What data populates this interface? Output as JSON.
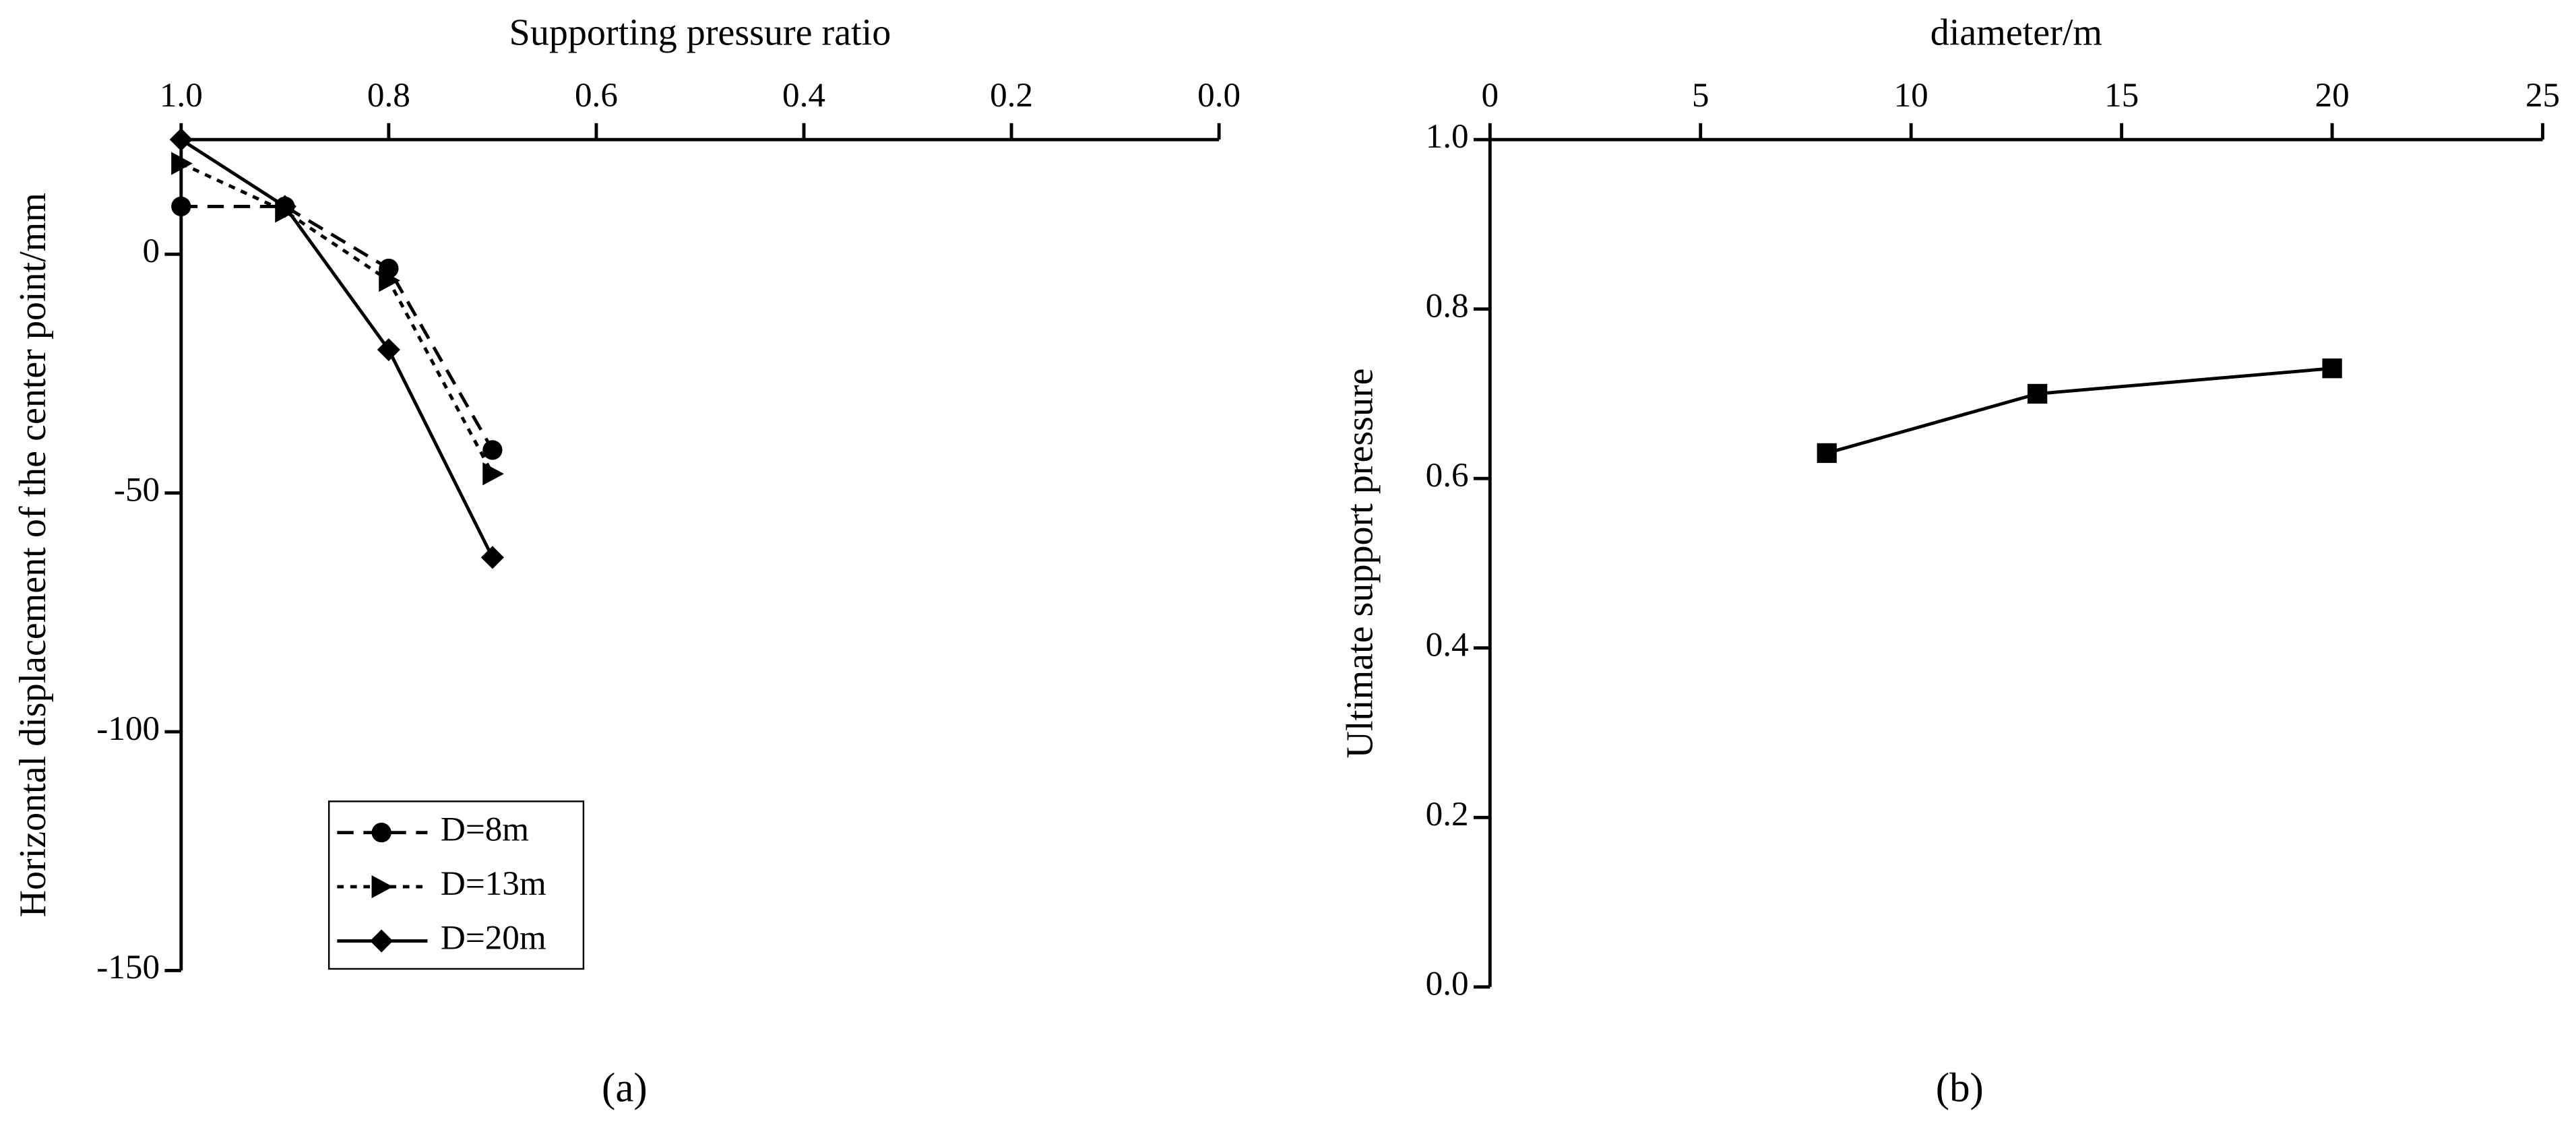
{
  "chart_data": [
    {
      "type": "line",
      "xlabel": "Supporting pressure ratio",
      "ylabel": "Horizontal displacement of the center point/mm",
      "caption": "(a)",
      "x": [
        1,
        0.9,
        0.8,
        0.7
      ],
      "xlim": [
        1,
        0
      ],
      "xticks": [
        {
          "value": 1,
          "label": "1.0"
        },
        0.8,
        0.6,
        0.4,
        0.2,
        {
          "value": 0,
          "label": "0.0"
        }
      ],
      "ylim": [
        -150,
        24
      ],
      "yticks": [
        0,
        -50,
        -100,
        -150
      ],
      "x_axis_position": "top",
      "legend": "lower left",
      "series": [
        {
          "name": "D=8m",
          "color": "#000000",
          "marker": "circle",
          "dash": "dashed",
          "values": [
            10,
            10,
            -3,
            -41
          ]
        },
        {
          "name": "D=13m",
          "color": "#000000",
          "marker": "triangle-right",
          "dash": "dotted",
          "values": [
            19,
            9,
            -5.5,
            -46
          ]
        },
        {
          "name": "D=20m",
          "color": "#000000",
          "marker": "diamond",
          "dash": "solid",
          "values": [
            24,
            10,
            -20,
            -63.5
          ]
        }
      ]
    },
    {
      "type": "line",
      "xlabel": "diameter/m",
      "ylabel": "Ultimate support pressure",
      "caption": "(b)",
      "x": [
        8,
        13,
        20
      ],
      "xlim": [
        0,
        25
      ],
      "xticks": [
        0,
        5,
        10,
        15,
        20,
        25
      ],
      "ylim": [
        0,
        1
      ],
      "yticks": [
        {
          "value": 0,
          "label": "0.0"
        },
        0.2,
        0.4,
        0.6,
        0.8,
        {
          "value": 1,
          "label": "1.0"
        }
      ],
      "x_axis_position": "top",
      "series": [
        {
          "color": "#000000",
          "marker": "square",
          "dash": "solid",
          "values": [
            0.63,
            0.7,
            0.73
          ]
        }
      ]
    }
  ]
}
